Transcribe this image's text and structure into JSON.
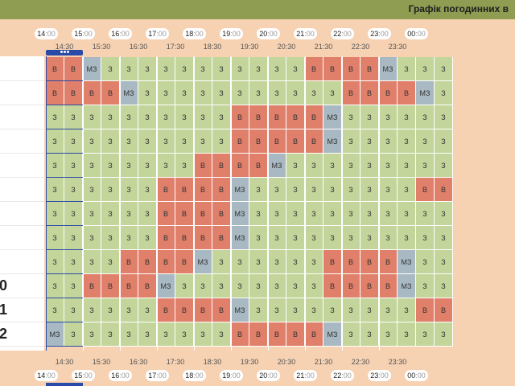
{
  "header": {
    "title": "Графік погодинних в"
  },
  "time_axis": {
    "hours": [
      {
        "h": "14",
        "m": ":00"
      },
      {
        "h": "15",
        "m": ":00"
      },
      {
        "h": "16",
        "m": ":00"
      },
      {
        "h": "17",
        "m": ":00"
      },
      {
        "h": "18",
        "m": ":00"
      },
      {
        "h": "19",
        "m": ":00"
      },
      {
        "h": "20",
        "m": ":00"
      },
      {
        "h": "21",
        "m": ":00"
      },
      {
        "h": "22",
        "m": ":00"
      },
      {
        "h": "23",
        "m": ":00"
      },
      {
        "h": "00",
        "m": ":00"
      }
    ],
    "half_labels": [
      "14:30",
      "15:30",
      "16:30",
      "17:30",
      "18:30",
      "19:30",
      "20:30",
      "21:30",
      "22:30",
      "23:30"
    ]
  },
  "rows": [
    {
      "label": "",
      "cells": "BBMZZZZZZZZZZZBBBBMZZZ"
    },
    {
      "label": "",
      "cells": "BBBBMZZZZZZZZZZZBBBBMZ"
    },
    {
      "label": "",
      "cells": "ZZZZZZZZZZBBBBBMZZZZZZ"
    },
    {
      "label": "",
      "cells": "ZZZZZZZZZZBBBBBMZZZZZZ"
    },
    {
      "label": "",
      "cells": "ZZZZZZZZBBBBMZZZZZZZZZ"
    },
    {
      "label": "",
      "cells": "ZZZZZZBBBBMZZZZZZZZZBB"
    },
    {
      "label": "",
      "cells": "ZZZZZZBBBBMZZZZZZZZZZZ"
    },
    {
      "label": "",
      "cells": "ZZZZZZBBBBMZZZZZZZZZZZ"
    },
    {
      "label": "",
      "cells": "ZZZZBBBBMZZZZZZBBBBMZZ"
    },
    {
      "label": "0",
      "cells": "ZZBBBBMZZZZZZZZBBBBMZZ"
    },
    {
      "label": "1",
      "cells": "ZZZZZZBBBBMZZZZZZZZZBB"
    },
    {
      "label": "2",
      "cells": "MZZZZZZZZZBBBBBMZZZZZZ"
    }
  ],
  "status_codes": {
    "B": {
      "text": "В",
      "color": "#e07f6a"
    },
    "Z": {
      "text": "З",
      "color": "#c3d59a"
    },
    "M": {
      "text": "МЗ",
      "color": "#a9b9c3"
    }
  },
  "colors": {
    "header_bg": "#8e9d52",
    "page_bg": "#f6d2b3",
    "current_slot": "#2a4aa8"
  }
}
